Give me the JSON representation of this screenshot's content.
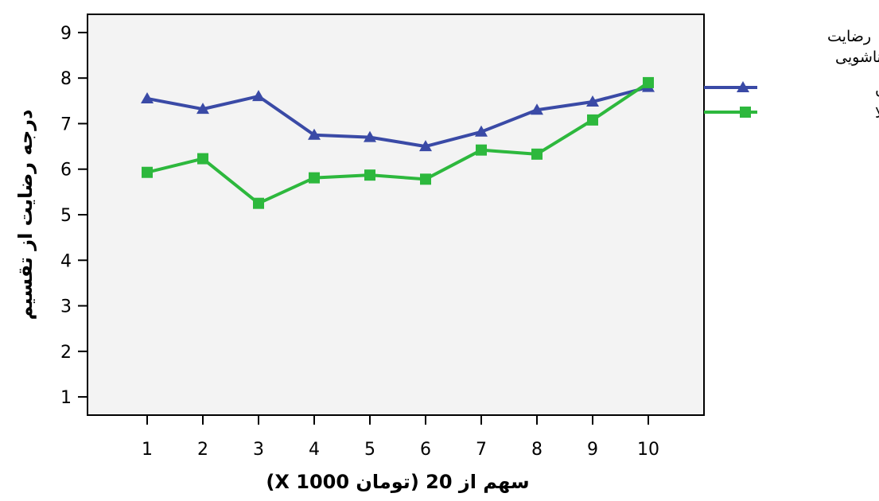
{
  "chart_data": {
    "type": "line",
    "categories": [
      "1",
      "2",
      "3",
      "4",
      "5",
      "6",
      "7",
      "8",
      "9",
      "10"
    ],
    "xlabel": "سهم از 20 (تومان X 1000)",
    "ylabel": "درجه رضایت از تقسیم",
    "ylim": [
      0.6,
      9.4
    ],
    "yticks": [
      "1",
      "2",
      "3",
      "4",
      "5",
      "6",
      "7",
      "8",
      "9"
    ],
    "grid": false,
    "legend": {
      "title_line1": "رضایت",
      "title_line2": "زناشویی",
      "placement": "right"
    },
    "series": [
      {
        "name": "رضایت پایین",
        "values": [
          7.55,
          7.32,
          7.6,
          6.75,
          6.7,
          6.5,
          6.82,
          7.3,
          7.48,
          7.8
        ],
        "color": "#3a4aa6",
        "marker": "triangle"
      },
      {
        "name": "رضایت بالا",
        "values": [
          5.93,
          6.23,
          5.25,
          5.81,
          5.87,
          5.78,
          6.42,
          6.33,
          7.08,
          7.9
        ],
        "color": "#2db83d",
        "marker": "square"
      }
    ],
    "plot_background": "#f3f3f3"
  }
}
